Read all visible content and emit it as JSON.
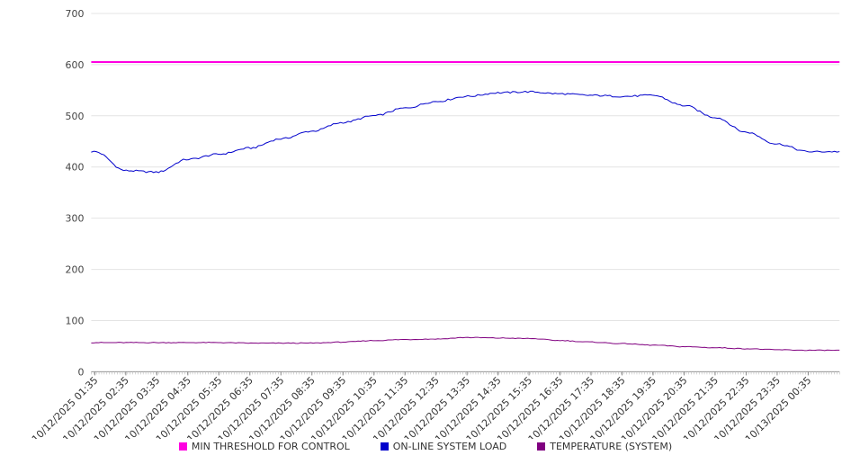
{
  "chart_data": {
    "type": "line",
    "title": "",
    "xlabel": "",
    "ylabel": "",
    "ylim": [
      0,
      700
    ],
    "y_ticks": [
      0,
      100,
      200,
      300,
      400,
      500,
      600,
      700
    ],
    "grid": "horizontal",
    "legend_position": "bottom",
    "x_labels": [
      "10/12/2025 01:35",
      "10/12/2025 02:35",
      "10/12/2025 03:35",
      "10/12/2025 04:35",
      "10/12/2025 05:35",
      "10/12/2025 06:35",
      "10/12/2025 07:35",
      "10/12/2025 08:35",
      "10/12/2025 09:35",
      "10/12/2025 10:35",
      "10/12/2025 11:35",
      "10/12/2025 12:35",
      "10/12/2025 13:35",
      "10/12/2025 14:35",
      "10/12/2025 15:35",
      "10/12/2025 16:35",
      "10/12/2025 17:35",
      "10/12/2025 18:35",
      "10/12/2025 19:35",
      "10/12/2025 20:35",
      "10/12/2025 21:35",
      "10/12/2025 22:35",
      "10/12/2025 23:35",
      "10/13/2025 00:35"
    ],
    "series": [
      {
        "name": "MIN THRESHOLD FOR CONTROL",
        "color": "#ff00e1",
        "values": [
          605,
          605,
          605,
          605,
          605,
          605,
          605,
          605,
          605,
          605,
          605,
          605,
          605,
          605,
          605,
          605,
          605,
          605,
          605,
          605,
          605,
          605,
          605,
          605
        ]
      },
      {
        "name": "ON-LINE SYSTEM LOAD",
        "color": "#0000cc",
        "values": [
          430,
          393,
          390,
          415,
          425,
          437,
          455,
          470,
          487,
          500,
          515,
          528,
          538,
          545,
          547,
          543,
          540,
          538,
          540,
          520,
          497,
          468,
          445,
          430
        ]
      },
      {
        "name": "TEMPERATURE (SYSTEM)",
        "color": "#800080",
        "values": [
          57,
          57,
          57,
          57,
          57,
          56,
          56,
          56,
          58,
          61,
          63,
          64,
          67,
          66,
          65,
          61,
          58,
          55,
          52,
          49,
          47,
          45,
          43,
          42
        ]
      }
    ]
  }
}
